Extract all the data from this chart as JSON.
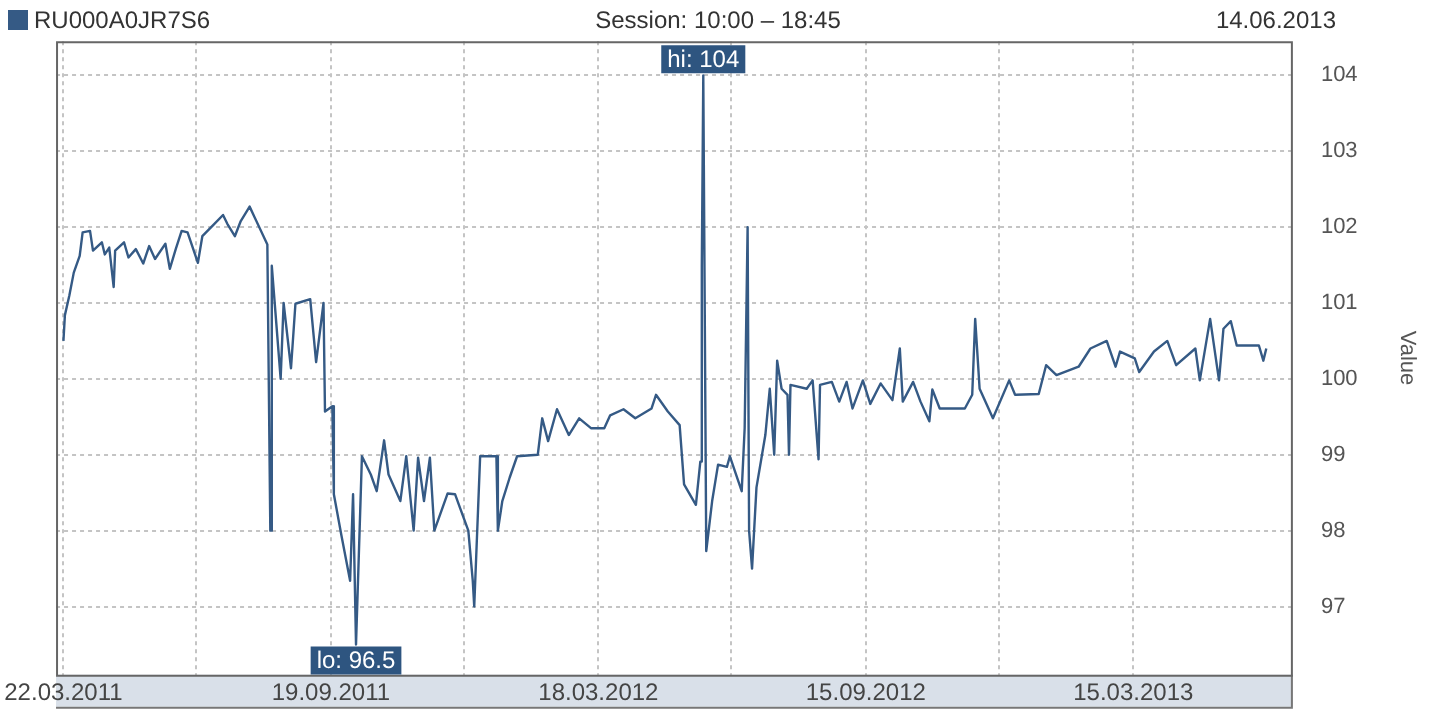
{
  "chart_data": {
    "type": "line",
    "subtitle": "Session: 10:00 – 18:45",
    "ylabel": "Value",
    "legend": "top left",
    "grid": true,
    "annotations": [
      "14.06.2013",
      {
        "text": "hi: 104",
        "x": "2012-05-28",
        "y": 104
      },
      {
        "text": "lo: 96.5",
        "x": "2011-10-06",
        "y": 96.5
      }
    ],
    "xlim": [
      "2011-03-17",
      "2013-07-01"
    ],
    "xticks": [
      {
        "value": "2011-03-22",
        "label": "22.03.2011"
      },
      {
        "value": "2011-06-20",
        "label": null
      },
      {
        "value": "2011-09-19",
        "label": "19.09.2011"
      },
      {
        "value": "2011-12-18",
        "label": null
      },
      {
        "value": "2012-03-18",
        "label": "18.03.2012"
      },
      {
        "value": "2012-06-16",
        "label": null
      },
      {
        "value": "2012-09-15",
        "label": "15.09.2012"
      },
      {
        "value": "2012-12-14",
        "label": null
      },
      {
        "value": "2013-03-15",
        "label": "15.03.2013"
      }
    ],
    "ylim": [
      96.1,
      104.45
    ],
    "yticks": [
      97,
      98,
      99,
      100,
      101,
      102,
      103,
      104
    ],
    "x": [
      "2011-03-22",
      "2011-03-23",
      "2011-03-26",
      "2011-03-29",
      "2011-04-02",
      "2011-04-04",
      "2011-04-09",
      "2011-04-11",
      "2011-04-17",
      "2011-04-19",
      "2011-04-22",
      "2011-04-25",
      "2011-04-26",
      "2011-05-02",
      "2011-05-05",
      "2011-05-10",
      "2011-05-15",
      "2011-05-19",
      "2011-05-23",
      "2011-05-30",
      "2011-06-02",
      "2011-06-06",
      "2011-06-10",
      "2011-06-14",
      "2011-06-21",
      "2011-06-24",
      "2011-07-01",
      "2011-07-08",
      "2011-07-11",
      "2011-07-16",
      "2011-07-20",
      "2011-07-26",
      "2011-08-07",
      "2011-08-09",
      "2011-08-10",
      "2011-08-16",
      "2011-08-18",
      "2011-08-23",
      "2011-08-26",
      "2011-09-05",
      "2011-09-09",
      "2011-09-14",
      "2011-09-15",
      "2011-09-20",
      "2011-09-21",
      "2011-09-26",
      "2011-10-02",
      "2011-10-04",
      "2011-10-06",
      "2011-10-10",
      "2011-10-16",
      "2011-10-20",
      "2011-10-25",
      "2011-10-28",
      "2011-11-05",
      "2011-11-09",
      "2011-11-14",
      "2011-11-17",
      "2011-11-21",
      "2011-11-25",
      "2011-11-28",
      "2011-12-07",
      "2011-12-12",
      "2011-12-21",
      "2011-12-24",
      "2011-12-25",
      "2011-12-29",
      "2012-01-09",
      "2012-01-10",
      "2012-01-13",
      "2012-01-18",
      "2012-01-23",
      "2012-02-06",
      "2012-02-09",
      "2012-02-13",
      "2012-02-19",
      "2012-02-27",
      "2012-03-05",
      "2012-03-13",
      "2012-03-22",
      "2012-03-26",
      "2012-04-04",
      "2012-04-12",
      "2012-04-23",
      "2012-04-26",
      "2012-05-04",
      "2012-05-12",
      "2012-05-15",
      "2012-05-23",
      "2012-05-26",
      "2012-05-27",
      "2012-05-28",
      "2012-05-30",
      "2012-06-03",
      "2012-06-07",
      "2012-06-13",
      "2012-06-15",
      "2012-06-23",
      "2012-06-25",
      "2012-06-27",
      "2012-06-28",
      "2012-06-30",
      "2012-07-03",
      "2012-07-09",
      "2012-07-12",
      "2012-07-15",
      "2012-07-17",
      "2012-07-20",
      "2012-07-24",
      "2012-07-25",
      "2012-07-26",
      "2012-08-06",
      "2012-08-10",
      "2012-08-14",
      "2012-08-15",
      "2012-08-23",
      "2012-08-28",
      "2012-09-02",
      "2012-09-06",
      "2012-09-13",
      "2012-09-18",
      "2012-09-25",
      "2012-10-03",
      "2012-10-08",
      "2012-10-10",
      "2012-10-17",
      "2012-10-22",
      "2012-10-28",
      "2012-10-30",
      "2012-11-04",
      "2012-11-21",
      "2012-11-26",
      "2012-11-28",
      "2012-12-01",
      "2012-12-10",
      "2012-12-21",
      "2012-12-25",
      "2013-01-10",
      "2013-01-15",
      "2013-01-22",
      "2013-02-06",
      "2013-02-14",
      "2013-02-25",
      "2013-03-03",
      "2013-03-06",
      "2013-03-16",
      "2013-03-19",
      "2013-03-29",
      "2013-04-07",
      "2013-04-13",
      "2013-04-26",
      "2013-04-29",
      "2013-05-06",
      "2013-05-12",
      "2013-05-15",
      "2013-05-20",
      "2013-05-24",
      "2013-06-08",
      "2013-06-11",
      "2013-06-13"
    ],
    "series": [
      {
        "name": "RU000A0JR7S6",
        "color": "#355a85",
        "values": [
          100.5,
          100.84,
          101.1,
          101.4,
          101.62,
          101.93,
          101.95,
          101.69,
          101.8,
          101.64,
          101.73,
          101.21,
          101.69,
          101.8,
          101.6,
          101.71,
          101.52,
          101.75,
          101.58,
          101.78,
          101.45,
          101.71,
          101.95,
          101.93,
          101.53,
          101.88,
          102.02,
          102.16,
          102.04,
          101.88,
          102.08,
          102.27,
          101.77,
          98.0,
          101.49,
          100.0,
          101.0,
          100.14,
          100.99,
          101.05,
          100.22,
          101.0,
          99.57,
          99.64,
          98.48,
          97.95,
          97.34,
          98.48,
          96.5,
          98.98,
          98.74,
          98.52,
          99.19,
          98.74,
          98.39,
          98.98,
          98.0,
          98.96,
          98.39,
          98.96,
          98.0,
          98.49,
          98.48,
          98.0,
          97.34,
          97.0,
          98.98,
          98.98,
          98.0,
          98.39,
          98.7,
          98.98,
          99.0,
          99.48,
          99.18,
          99.6,
          99.26,
          99.48,
          99.35,
          99.35,
          99.52,
          99.6,
          99.48,
          99.61,
          99.79,
          99.57,
          99.39,
          98.61,
          98.34,
          98.91,
          101.49,
          104,
          97.73,
          98.39,
          98.87,
          98.84,
          98.98,
          98.52,
          99.35,
          102.0,
          98.0,
          97.5,
          98.57,
          99.26,
          99.87,
          99.0,
          100.24,
          99.87,
          99.79,
          99.0,
          99.92,
          99.87,
          99.98,
          98.94,
          99.92,
          99.96,
          99.7,
          99.96,
          99.61,
          99.98,
          99.67,
          99.94,
          99.72,
          100.4,
          99.7,
          99.96,
          99.7,
          99.44,
          99.86,
          99.61,
          99.61,
          99.79,
          100.79,
          99.87,
          99.48,
          99.98,
          99.79,
          99.8,
          100.18,
          100.05,
          100.16,
          100.4,
          100.5,
          100.16,
          100.36,
          100.27,
          100.09,
          100.36,
          100.5,
          100.18,
          100.4,
          99.98,
          100.79,
          99.98,
          100.66,
          100.76,
          100.44,
          100.44,
          100.24,
          100.4
        ]
      }
    ]
  }
}
